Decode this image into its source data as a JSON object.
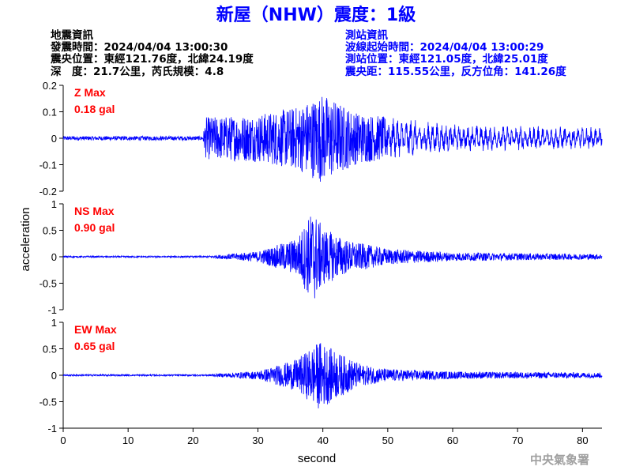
{
  "title": "新屋（NHW）震度：1級",
  "earthquake_info": {
    "heading": "地震資訊",
    "lines": [
      "發震時間：2024/04/04 13:00:30",
      "震央位置：東經121.76度，北緯24.19度",
      "深　度：21.7公里，芮氏規模：4.8"
    ]
  },
  "station_info": {
    "heading": "測站資訊",
    "lines": [
      "波線起始時間：2024/04/04 13:00:29",
      "測站位置：東經121.05度，北緯25.01度",
      "震央距：115.55公里，反方位角：141.26度"
    ]
  },
  "agency": "中央氣象署",
  "colors": {
    "trace": "#0000ff",
    "max_label": "#ff0000",
    "title": "#0000ff",
    "agency": "#a0a0a0"
  },
  "chart_data": {
    "type": "line",
    "xlabel": "second",
    "ylabel": "acceleration",
    "xlim": [
      0,
      83
    ],
    "x_ticks": [
      0,
      10,
      20,
      30,
      40,
      50,
      60,
      70,
      80
    ],
    "x_tick_labels": [
      "0",
      "10",
      "20",
      "30",
      "40",
      "50",
      "60",
      "70",
      "80"
    ],
    "panels": [
      {
        "component": "Z",
        "max_label": "Z Max",
        "max_value_label": "0.18 gal",
        "ylim": [
          -0.2,
          0.2
        ],
        "y_ticks": [
          -0.2,
          -0.1,
          0,
          0.1,
          0.2
        ],
        "y_tick_labels": [
          "-0.2",
          "-0.1",
          "0",
          "0.1",
          "0.2"
        ],
        "trace_envelope": {
          "seconds": [
            0,
            21.5,
            22,
            30,
            36,
            40,
            45,
            50,
            60,
            70,
            83
          ],
          "amplitude": [
            0.008,
            0.008,
            0.08,
            0.09,
            0.12,
            0.17,
            0.1,
            0.08,
            0.05,
            0.045,
            0.04
          ]
        }
      },
      {
        "component": "NS",
        "max_label": "NS Max",
        "max_value_label": "0.90 gal",
        "ylim": [
          -1,
          1
        ],
        "y_ticks": [
          -1,
          -0.5,
          0,
          0.5,
          1
        ],
        "y_tick_labels": [
          "-1",
          "-0.5",
          "0",
          "0.5",
          "1"
        ],
        "trace_envelope": {
          "seconds": [
            0,
            22,
            30,
            36,
            38.5,
            40,
            44,
            50,
            60,
            83
          ],
          "amplitude": [
            0.015,
            0.015,
            0.1,
            0.35,
            0.9,
            0.55,
            0.3,
            0.15,
            0.08,
            0.05
          ]
        }
      },
      {
        "component": "EW",
        "max_label": "EW Max",
        "max_value_label": "0.65 gal",
        "ylim": [
          -1,
          1
        ],
        "y_ticks": [
          -1,
          -0.5,
          0,
          0.5,
          1
        ],
        "y_tick_labels": [
          "-1",
          "-0.5",
          "0",
          "0.5",
          "1"
        ],
        "trace_envelope": {
          "seconds": [
            0,
            22,
            30,
            36,
            39.5,
            42,
            46,
            50,
            60,
            83
          ],
          "amplitude": [
            0.015,
            0.015,
            0.08,
            0.3,
            0.65,
            0.45,
            0.2,
            0.12,
            0.07,
            0.05
          ]
        }
      }
    ]
  }
}
